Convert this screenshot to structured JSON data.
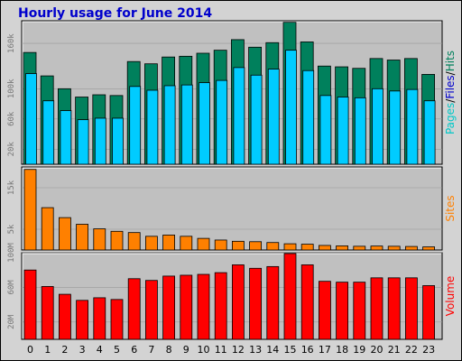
{
  "colors": {
    "title": "#0000cc",
    "hits": "#00805c",
    "files": "#00ccff",
    "pages": "#00c8c8",
    "sites": "#ff8000",
    "volume": "#ff0000",
    "panel_bg": "#c0c0c0",
    "frame_bg": "#d3d3d3",
    "tick": "#777777"
  },
  "chart_data": {
    "type": "bar",
    "title": "Hourly usage for June 2014",
    "categories": [
      "0",
      "1",
      "2",
      "3",
      "4",
      "5",
      "6",
      "7",
      "8",
      "9",
      "10",
      "11",
      "12",
      "13",
      "14",
      "15",
      "16",
      "17",
      "18",
      "19",
      "20",
      "21",
      "22",
      "23"
    ],
    "panels": [
      {
        "id": "usage",
        "label_parts": [
          {
            "text": "Pages",
            "color": "#00c8c8"
          },
          {
            "text": "/",
            "color": "#000000"
          },
          {
            "text": "Files",
            "color": "#0000cc"
          },
          {
            "text": "/",
            "color": "#000000"
          },
          {
            "text": "Hits",
            "color": "#00805c"
          }
        ],
        "ylim": [
          0,
          190000
        ],
        "ticks": [
          {
            "v": 20000,
            "label": "20k"
          },
          {
            "v": 60000,
            "label": "60k"
          },
          {
            "v": 100000,
            "label": "100k"
          },
          {
            "v": 160000,
            "label": "160k"
          }
        ],
        "series": [
          {
            "name": "Hits",
            "color": "#00805c",
            "values": [
              148000,
              117000,
              100000,
              89000,
              92000,
              91000,
              136000,
              133000,
              142000,
              143000,
              147000,
              151000,
              165000,
              155000,
              161000,
              188000,
              162000,
              130000,
              129000,
              127000,
              140000,
              138000,
              140000,
              119000
            ]
          },
          {
            "name": "Files",
            "color": "#00ccff",
            "values": [
              120000,
              84000,
              71000,
              59000,
              61000,
              61000,
              103000,
              98000,
              104000,
              105000,
              108000,
              111000,
              128000,
              118000,
              126000,
              151000,
              124000,
              91000,
              89000,
              88000,
              100000,
              97000,
              99000,
              84000
            ]
          }
        ]
      },
      {
        "id": "sites",
        "label_parts": [
          {
            "text": "Sites",
            "color": "#ff8000"
          }
        ],
        "ylim": [
          0,
          20000
        ],
        "ticks": [
          {
            "v": 5000,
            "label": "5k"
          },
          {
            "v": 15000,
            "label": "15k"
          }
        ],
        "series": [
          {
            "name": "Sites",
            "color": "#ff8000",
            "values": [
              19400,
              10200,
              7800,
              6200,
              5100,
              4500,
              4200,
              3300,
              3600,
              3300,
              2800,
              2400,
              2100,
              2000,
              1800,
              1500,
              1400,
              1100,
              1000,
              900,
              950,
              900,
              850,
              750
            ]
          }
        ]
      },
      {
        "id": "volume",
        "label_parts": [
          {
            "text": "Volume",
            "color": "#ff0000"
          }
        ],
        "ylim": [
          0,
          100000000
        ],
        "ticks": [
          {
            "v": 20000000,
            "label": "20M"
          },
          {
            "v": 60000000,
            "label": "60M"
          },
          {
            "v": 100000000,
            "label": "100M"
          }
        ],
        "series": [
          {
            "name": "Volume",
            "color": "#ff0000",
            "values": [
              80000000,
              61000000,
              52000000,
              45000000,
              48000000,
              46000000,
              70000000,
              68000000,
              73000000,
              74000000,
              75000000,
              77000000,
              86000000,
              82000000,
              84000000,
              99000000,
              86000000,
              67000000,
              66000000,
              66000000,
              71000000,
              71000000,
              71000000,
              62000000
            ]
          }
        ]
      }
    ]
  }
}
